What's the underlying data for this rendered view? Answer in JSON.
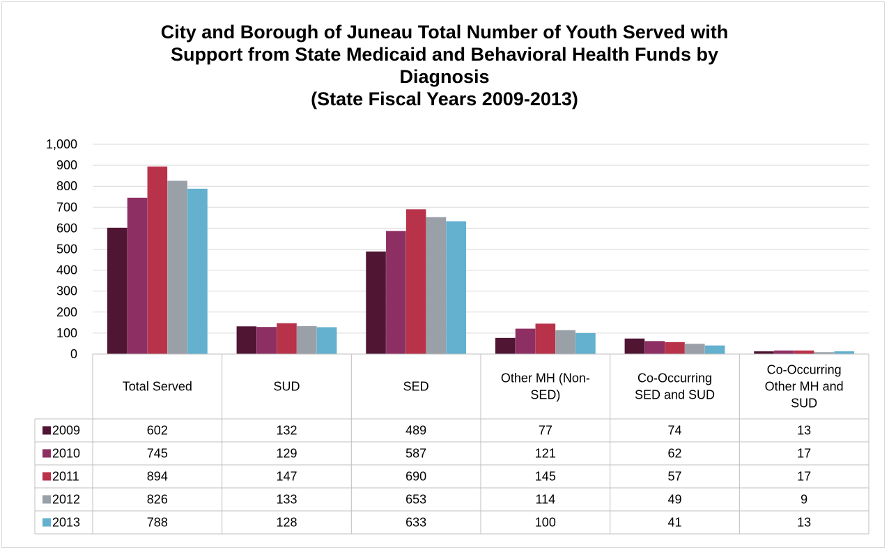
{
  "chart_data": {
    "type": "bar",
    "title_lines": [
      "City and Borough of Juneau Total Number of Youth Served with",
      "Support from State Medicaid and Behavioral Health Funds by",
      "Diagnosis",
      "(State Fiscal Years 2009-2013)"
    ],
    "categories": [
      [
        "Total Served"
      ],
      [
        "SUD"
      ],
      [
        "SED"
      ],
      [
        "Other MH (Non-",
        "SED)"
      ],
      [
        "Co-Occurring",
        "SED and SUD"
      ],
      [
        "Co-Occurring",
        "Other MH and",
        "SUD"
      ]
    ],
    "series": [
      {
        "name": "2009",
        "color": "#4F1533",
        "values": [
          602,
          132,
          489,
          77,
          74,
          13
        ]
      },
      {
        "name": "2010",
        "color": "#8E2F63",
        "values": [
          745,
          129,
          587,
          121,
          62,
          17
        ]
      },
      {
        "name": "2011",
        "color": "#B83249",
        "values": [
          894,
          147,
          690,
          145,
          57,
          17
        ]
      },
      {
        "name": "2012",
        "color": "#9AA0A8",
        "values": [
          826,
          133,
          653,
          114,
          49,
          9
        ]
      },
      {
        "name": "2013",
        "color": "#63B0CF",
        "values": [
          788,
          128,
          633,
          100,
          41,
          13
        ]
      }
    ],
    "ylim": [
      0,
      1000
    ],
    "yticks": [
      0,
      100,
      200,
      300,
      400,
      500,
      600,
      700,
      800,
      900,
      1000
    ],
    "ytick_labels": [
      "0",
      "100",
      "200",
      "300",
      "400",
      "500",
      "600",
      "700",
      "800",
      "900",
      "1,000"
    ],
    "grid": true,
    "legend": "data table below chart"
  }
}
